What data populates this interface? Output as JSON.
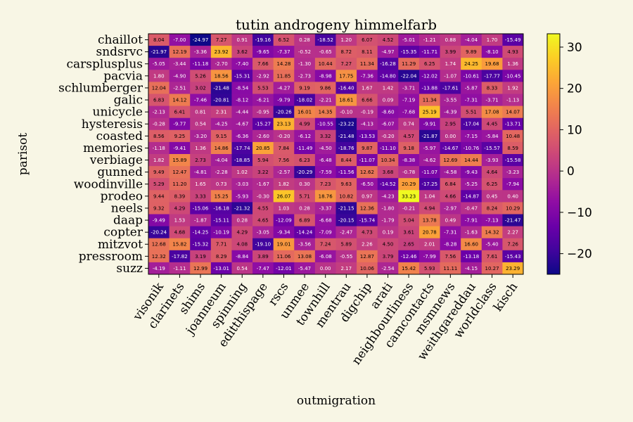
{
  "chart_data": {
    "type": "heatmap",
    "title": "tutin androgeny himmelfarb",
    "xlabel": "outmigration",
    "ylabel": "parisot",
    "x_categories": [
      "visonik",
      "clarinets",
      "shims",
      "joanneum",
      "spinning",
      "editthispage",
      "rscs",
      "unmee",
      "townhill",
      "mentrau",
      "digchip",
      "arati",
      "neighbourliness",
      "camcontacts",
      "msmnews",
      "weithgareddau",
      "worldclass",
      "kisch"
    ],
    "y_categories": [
      "chaillot",
      "sndsrvc",
      "carsplusplus",
      "pacvia",
      "schlumberger",
      "galic",
      "unicycle",
      "hysteresis",
      "coasted",
      "memories",
      "verbiage",
      "gunned",
      "woodinville",
      "prodeo",
      "neels",
      "daap",
      "copter",
      "mitzvot",
      "pressroom",
      "suzz"
    ],
    "values": [
      [
        8.04,
        -7.0,
        -24.97,
        7.27,
        0.91,
        -19.16,
        6.52,
        0.28,
        -18.52,
        1.2,
        6.07,
        4.52,
        -5.01,
        -1.21,
        0.88,
        -4.04,
        1.7,
        -15.49
      ],
      [
        -21.97,
        12.19,
        -3.36,
        23.92,
        3.62,
        -9.65,
        -7.37,
        -0.52,
        -0.65,
        8.72,
        8.11,
        -4.97,
        -15.35,
        -11.71,
        3.99,
        9.89,
        -8.1,
        4.93
      ],
      [
        -5.05,
        -3.44,
        -11.18,
        -2.7,
        -7.4,
        7.66,
        14.28,
        -1.3,
        10.44,
        7.27,
        11.34,
        -16.28,
        11.29,
        6.25,
        1.74,
        24.25,
        19.68,
        1.36
      ],
      [
        1.8,
        -4.9,
        5.26,
        18.56,
        -15.31,
        -2.92,
        11.85,
        -2.73,
        -8.98,
        17.75,
        -7.36,
        -14.8,
        -22.04,
        -12.02,
        -1.07,
        -10.61,
        -17.77,
        -10.45
      ],
      [
        12.04,
        -2.51,
        3.02,
        -21.48,
        -8.54,
        5.53,
        -4.27,
        9.19,
        9.86,
        -16.4,
        1.67,
        1.42,
        -3.71,
        -13.88,
        -17.61,
        -5.87,
        8.33,
        1.92
      ],
      [
        6.83,
        14.12,
        -7.46,
        -20.81,
        -8.12,
        -6.21,
        -9.79,
        -18.02,
        -2.21,
        18.61,
        6.66,
        0.09,
        -7.19,
        11.34,
        -3.55,
        -7.31,
        -3.71,
        -1.13
      ],
      [
        -2.13,
        6.41,
        0.81,
        2.31,
        -4.44,
        -0.95,
        -20.26,
        16.01,
        14.35,
        -0.1,
        -0.19,
        -8.6,
        -7.68,
        25.19,
        -4.39,
        5.51,
        17.08,
        14.07
      ],
      [
        -0.28,
        -9.77,
        0.54,
        -4.25,
        -4.67,
        -15.27,
        23.13,
        4.99,
        -10.55,
        -23.22,
        -4.13,
        -6.07,
        0.74,
        -9.91,
        2.95,
        -17.04,
        4.45,
        -13.71
      ],
      [
        8.56,
        9.25,
        -3.2,
        9.15,
        -6.36,
        -2.6,
        -0.2,
        -6.12,
        3.32,
        -21.48,
        -13.53,
        -0.2,
        4.57,
        -21.87,
        0.0,
        -7.15,
        -5.84,
        10.48
      ],
      [
        -1.18,
        -9.41,
        1.36,
        14.86,
        -17.74,
        20.85,
        7.84,
        -11.49,
        -4.5,
        -18.76,
        9.87,
        -11.1,
        9.18,
        -5.97,
        -14.67,
        -10.76,
        -15.57,
        8.59
      ],
      [
        1.82,
        15.89,
        2.73,
        -4.04,
        -18.85,
        5.94,
        7.56,
        6.23,
        -6.48,
        8.44,
        -11.07,
        10.34,
        -8.38,
        -4.62,
        12.69,
        14.44,
        -3.93,
        -15.58
      ],
      [
        9.49,
        12.47,
        -4.81,
        -2.28,
        1.02,
        3.22,
        -2.57,
        -20.29,
        -7.59,
        -11.56,
        12.62,
        3.68,
        -0.78,
        -11.07,
        -4.58,
        -9.43,
        4.64,
        -3.23
      ],
      [
        5.29,
        11.2,
        1.65,
        0.73,
        -3.03,
        -1.67,
        1.82,
        0.3,
        7.23,
        9.63,
        -6.5,
        -14.52,
        20.29,
        -17.25,
        6.84,
        -5.25,
        6.25,
        -7.94
      ],
      [
        9.44,
        8.39,
        3.33,
        15.25,
        -5.93,
        -0.3,
        26.07,
        5.71,
        18.76,
        10.82,
        0.97,
        -4.23,
        33.23,
        1.04,
        4.66,
        -14.87,
        0.45,
        0.4
      ],
      [
        9.32,
        4.29,
        -15.06,
        -16.18,
        -21.32,
        4.55,
        1.03,
        0.28,
        -3.37,
        -21.15,
        12.36,
        -1.8,
        -0.21,
        4.94,
        -2.97,
        -0.47,
        8.24,
        10.29
      ],
      [
        -9.49,
        1.53,
        -1.87,
        -15.11,
        0.28,
        4.65,
        -12.09,
        6.89,
        -6.68,
        -20.15,
        -15.74,
        -1.79,
        5.04,
        13.78,
        0.49,
        -7.91,
        -7.13,
        -21.47
      ],
      [
        -20.24,
        4.68,
        -14.25,
        -10.19,
        4.29,
        -3.05,
        -9.34,
        -14.24,
        -7.09,
        -2.47,
        4.73,
        0.19,
        3.61,
        20.78,
        -7.31,
        -1.63,
        14.32,
        2.27
      ],
      [
        12.68,
        15.82,
        -15.32,
        7.71,
        4.08,
        -19.1,
        19.01,
        -3.56,
        7.24,
        5.89,
        2.26,
        4.5,
        2.65,
        2.01,
        -8.28,
        16.6,
        -5.4,
        7.26
      ],
      [
        12.32,
        -17.82,
        3.19,
        8.29,
        -8.84,
        3.89,
        11.06,
        13.08,
        -6.08,
        -0.55,
        12.87,
        3.79,
        -12.46,
        -7.99,
        7.56,
        -13.18,
        7.61,
        -15.43
      ],
      [
        -4.19,
        -1.11,
        12.99,
        -13.01,
        0.54,
        -7.47,
        -12.01,
        -5.47,
        0.0,
        2.17,
        10.06,
        -2.54,
        15.42,
        5.93,
        11.11,
        -4.15,
        10.27,
        23.29
      ]
    ],
    "colormap": "plasma",
    "vmin": -25,
    "vmax": 33.23,
    "colorbar_ticks": [
      -20,
      -10,
      0,
      10,
      20,
      30
    ],
    "grid": false,
    "background": "#f8f6e5"
  }
}
